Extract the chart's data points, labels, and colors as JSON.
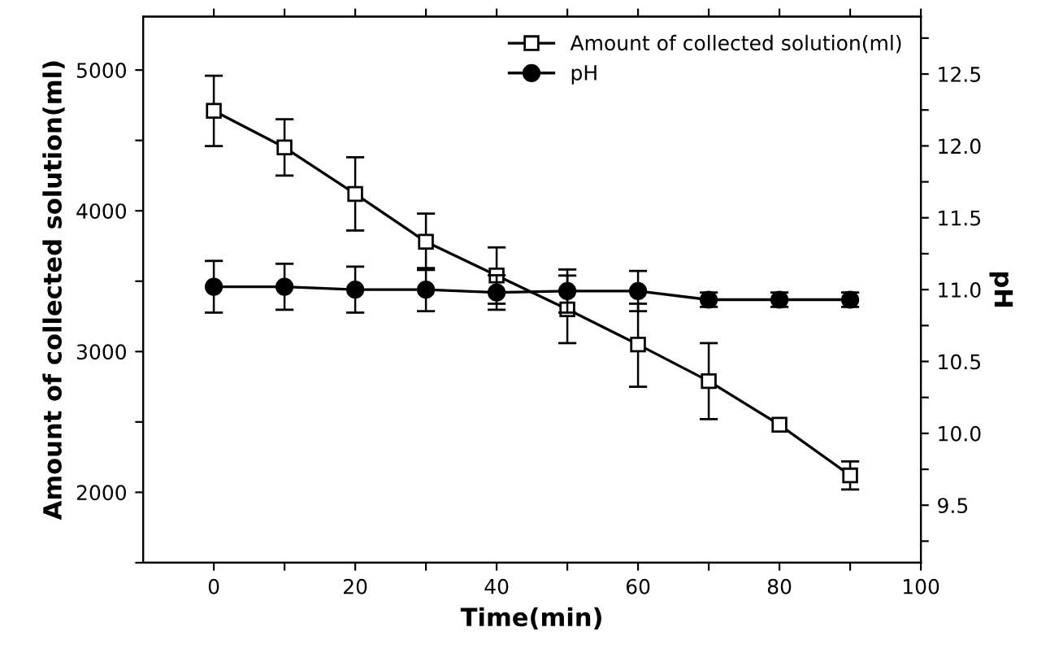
{
  "chart_data": {
    "type": "line",
    "xlabel": "Time(min)",
    "ylabel": "Amount of collected solution(ml)",
    "y2label": "pH",
    "x": [
      0,
      10,
      20,
      30,
      40,
      50,
      60,
      70,
      80,
      90
    ],
    "series": [
      {
        "name": "Amount of collected solution(ml)",
        "color": "#000000",
        "marker": "square",
        "values": [
          4710,
          4450,
          4120,
          3780,
          3540,
          3300,
          3050,
          2790,
          2480,
          2120
        ],
        "errors": [
          250,
          200,
          260,
          200,
          200,
          240,
          [
            2750,
            3340
          ],
          [
            2520,
            3060
          ],
          null,
          100
        ]
      },
      {
        "name": "pH",
        "color": "#000000",
        "marker": "circle",
        "axis": "y2",
        "values": [
          11.02,
          11.02,
          11.0,
          11.0,
          10.98,
          10.99,
          10.99,
          10.93,
          10.93,
          10.93
        ],
        "errors": [
          0.18,
          0.16,
          0.16,
          0.15,
          0.12,
          0.15,
          0.14,
          0.05,
          0.05,
          0.05
        ]
      }
    ],
    "xlim": [
      -10,
      100
    ],
    "xticks": [
      0,
      {
        "value": 10,
        "label": null
      },
      20,
      {
        "value": 30,
        "label": null
      },
      40,
      {
        "value": 50,
        "label": null
      },
      60,
      {
        "value": 70,
        "label": null
      },
      80,
      {
        "value": 90,
        "label": null
      },
      100
    ],
    "ylim": [
      1500,
      5380
    ],
    "yticks": [
      {
        "value": 1500,
        "label": null
      },
      2000,
      {
        "value": 2500,
        "label": null
      },
      3000,
      {
        "value": 3500,
        "label": null
      },
      4000,
      {
        "value": 4500,
        "label": null
      },
      5000
    ],
    "y2lim": [
      9.1,
      12.9
    ],
    "y2ticks": [
      {
        "value": 9.25,
        "label": null
      },
      9.5,
      {
        "value": 9.75,
        "label": null
      },
      {
        "value": 10.0,
        "label": "10.0"
      },
      {
        "value": 10.25,
        "label": null
      },
      10.5,
      {
        "value": 10.75,
        "label": null
      },
      {
        "value": 11.0,
        "label": "11.0"
      },
      {
        "value": 11.25,
        "label": null
      },
      11.5,
      {
        "value": 11.75,
        "label": null
      },
      {
        "value": 12.0,
        "label": "12.0"
      },
      {
        "value": 12.25,
        "label": null
      },
      12.5,
      {
        "value": 12.75,
        "label": null
      }
    ],
    "legend": "top right",
    "grid": false,
    "line_style": "solid"
  }
}
